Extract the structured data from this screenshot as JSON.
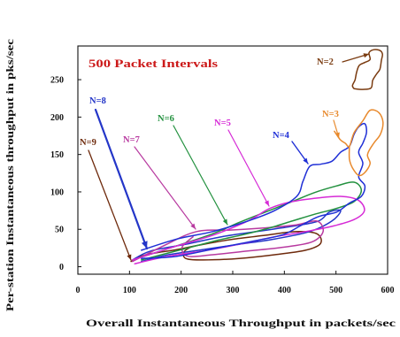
{
  "chart_data": {
    "type": "line",
    "title": "500 Packet Intervals",
    "title_color": "#cc1a1a",
    "xlabel": "Overall Instantaneous Throughput in packets/sec",
    "ylabel": "Per-station Instantaneous throughput in pks/sec",
    "xlim": [
      0,
      600
    ],
    "ylim": [
      -10,
      295
    ],
    "x_ticks": [
      0,
      100,
      200,
      300,
      400,
      500,
      600
    ],
    "y_ticks": [
      0,
      50,
      100,
      150,
      200,
      250
    ],
    "grid": false,
    "series": [
      {
        "name": "N=2",
        "color": "#7a3b10",
        "points": [
          [
            535,
            238
          ],
          [
            552,
            237
          ],
          [
            568,
            239
          ],
          [
            571,
            249
          ],
          [
            578,
            257
          ],
          [
            585,
            264
          ],
          [
            588,
            276
          ],
          [
            590,
            284
          ],
          [
            585,
            289
          ],
          [
            573,
            290
          ],
          [
            564,
            286
          ],
          [
            566,
            277
          ],
          [
            556,
            273
          ],
          [
            545,
            269
          ],
          [
            540,
            260
          ],
          [
            537,
            250
          ],
          [
            532,
            242
          ],
          [
            535,
            238
          ]
        ]
      },
      {
        "name": "N=3",
        "color": "#e8892c",
        "points": [
          [
            497,
            181
          ],
          [
            508,
            170
          ],
          [
            518,
            165
          ],
          [
            526,
            161
          ],
          [
            535,
            179
          ],
          [
            552,
            195
          ],
          [
            566,
            209
          ],
          [
            583,
            206
          ],
          [
            591,
            193
          ],
          [
            586,
            177
          ],
          [
            573,
            165
          ],
          [
            561,
            150
          ],
          [
            566,
            138
          ],
          [
            556,
            126
          ],
          [
            544,
            122
          ],
          [
            532,
            132
          ],
          [
            526,
            144
          ],
          [
            526,
            161
          ]
        ]
      },
      {
        "name": "N=4",
        "color": "#1f2fd6",
        "points": [
          [
            123,
            22
          ],
          [
            192,
            37
          ],
          [
            261,
            47
          ],
          [
            329,
            61
          ],
          [
            381,
            75
          ],
          [
            424,
            94
          ],
          [
            436,
            114
          ],
          [
            449,
            134
          ],
          [
            470,
            137
          ],
          [
            492,
            141
          ],
          [
            509,
            153
          ],
          [
            526,
            161
          ],
          [
            535,
            177
          ],
          [
            544,
            187
          ],
          [
            556,
            191
          ],
          [
            559,
            179
          ],
          [
            552,
            165
          ],
          [
            544,
            153
          ],
          [
            552,
            138
          ],
          [
            544,
            120
          ],
          [
            556,
            108
          ],
          [
            549,
            94
          ],
          [
            526,
            85
          ],
          [
            501,
            73
          ],
          [
            466,
            67
          ],
          [
            432,
            55
          ],
          [
            398,
            43
          ],
          [
            346,
            35
          ],
          [
            278,
            26
          ],
          [
            192,
            14
          ],
          [
            123,
            11
          ]
        ]
      },
      {
        "name": "N=5",
        "color": "#d62ad6",
        "points": [
          [
            106,
            9
          ],
          [
            183,
            26
          ],
          [
            261,
            42
          ],
          [
            329,
            61
          ],
          [
            372,
            78
          ],
          [
            415,
            87
          ],
          [
            466,
            92
          ],
          [
            509,
            94
          ],
          [
            543,
            89
          ],
          [
            555,
            75
          ],
          [
            535,
            63
          ],
          [
            492,
            54
          ],
          [
            441,
            47
          ],
          [
            381,
            40
          ],
          [
            312,
            30
          ],
          [
            243,
            21
          ],
          [
            175,
            14
          ],
          [
            110,
            4
          ]
        ]
      },
      {
        "name": "N=6",
        "color": "#23913f",
        "points": [
          [
            115,
            11
          ],
          [
            192,
            28
          ],
          [
            261,
            44
          ],
          [
            312,
            59
          ],
          [
            363,
            73
          ],
          [
            415,
            87
          ],
          [
            458,
            99
          ],
          [
            501,
            108
          ],
          [
            535,
            113
          ],
          [
            549,
            102
          ],
          [
            535,
            87
          ],
          [
            501,
            78
          ],
          [
            458,
            70
          ],
          [
            415,
            61
          ],
          [
            372,
            52
          ],
          [
            321,
            43
          ],
          [
            269,
            35
          ],
          [
            201,
            23
          ],
          [
            123,
            9
          ]
        ]
      },
      {
        "name": "N=7",
        "color": "#b83aa0",
        "points": [
          [
            106,
            7
          ],
          [
            166,
            28
          ],
          [
            230,
            47
          ],
          [
            295,
            49
          ],
          [
            363,
            52
          ],
          [
            423,
            56
          ],
          [
            463,
            61
          ],
          [
            475,
            47
          ],
          [
            453,
            33
          ],
          [
            398,
            26
          ],
          [
            329,
            21
          ],
          [
            261,
            16
          ],
          [
            213,
            14
          ],
          [
            202,
            26
          ],
          [
            223,
            40
          ]
        ]
      },
      {
        "name": "N=8",
        "color": "#2436c8",
        "points": [
          [
            106,
            9
          ],
          [
            141,
            21
          ],
          [
            209,
            30
          ],
          [
            278,
            40
          ],
          [
            346,
            47
          ],
          [
            415,
            54
          ],
          [
            466,
            61
          ],
          [
            487,
            73
          ],
          [
            509,
            75
          ],
          [
            492,
            61
          ],
          [
            449,
            47
          ],
          [
            381,
            37
          ],
          [
            312,
            30
          ],
          [
            243,
            23
          ],
          [
            175,
            16
          ],
          [
            123,
            7
          ]
        ]
      },
      {
        "name": "N=9",
        "color": "#6e2a0c",
        "points": [
          [
            103,
            7
          ],
          [
            132,
            16
          ],
          [
            192,
            23
          ],
          [
            243,
            30
          ],
          [
            303,
            37
          ],
          [
            363,
            42
          ],
          [
            423,
            47
          ],
          [
            463,
            44
          ],
          [
            470,
            31
          ],
          [
            441,
            22
          ],
          [
            381,
            16
          ],
          [
            312,
            11
          ],
          [
            243,
            9
          ],
          [
            209,
            11
          ],
          [
            206,
            20
          ],
          [
            218,
            26
          ]
        ]
      }
    ]
  }
}
